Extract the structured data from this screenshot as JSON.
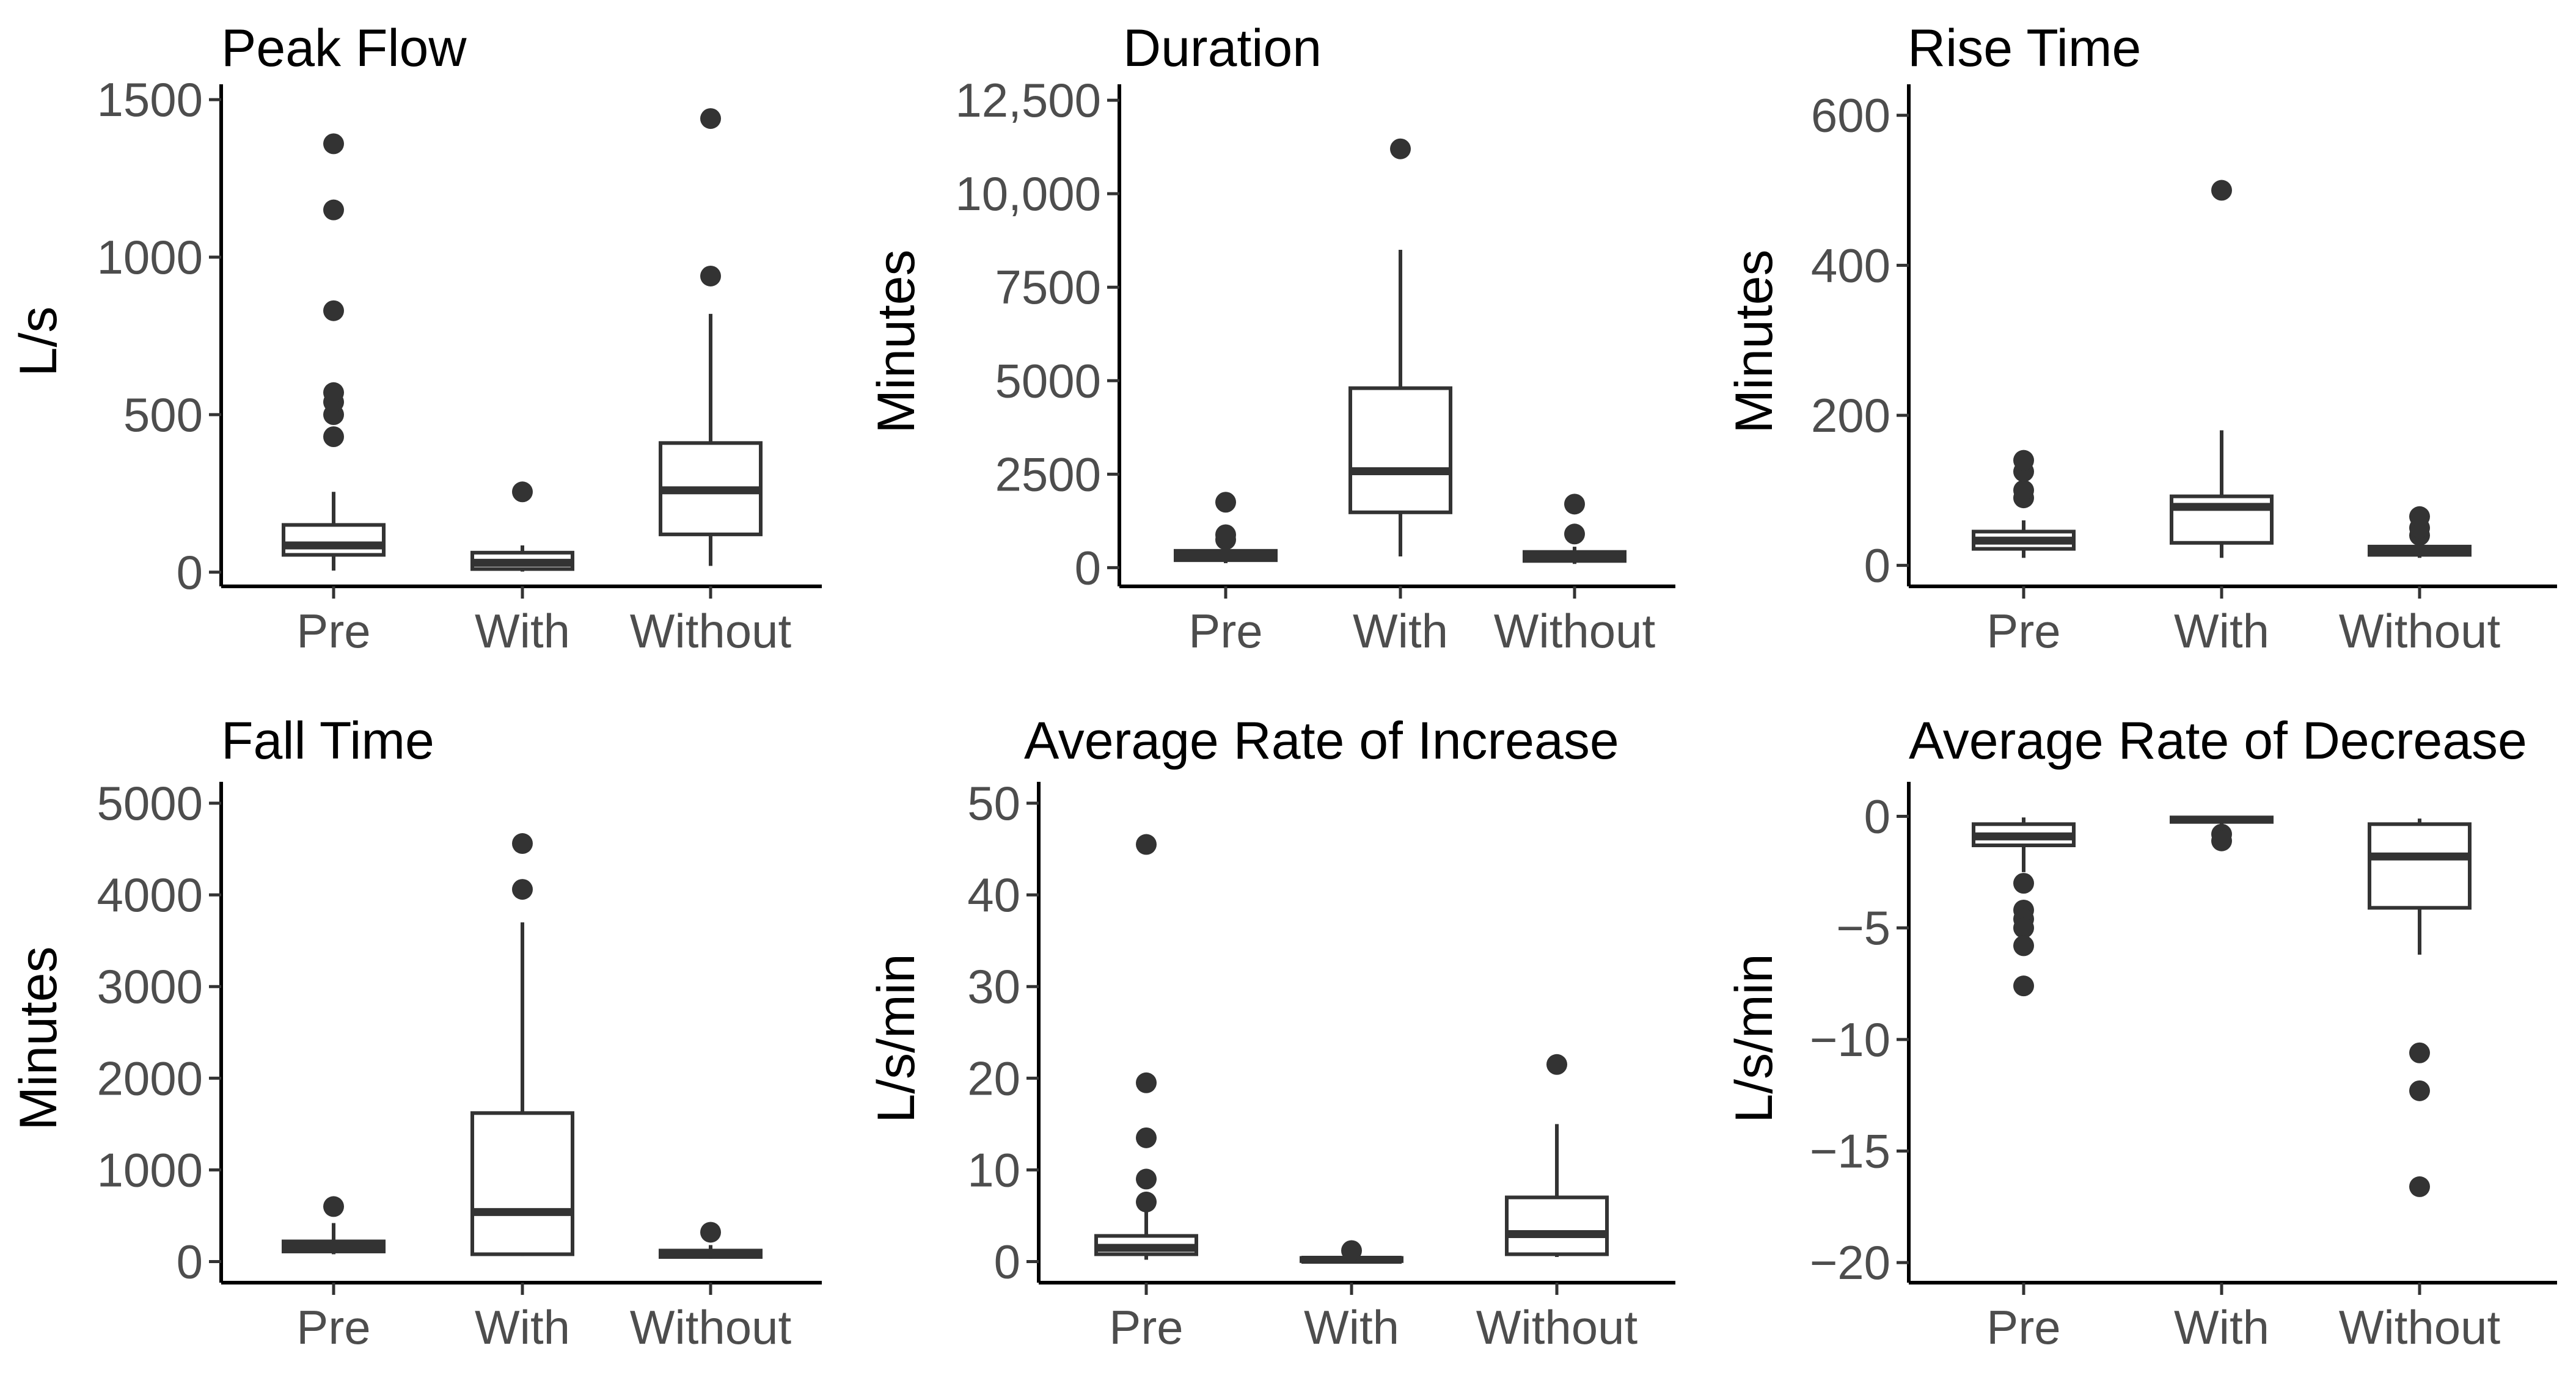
{
  "chart_data": [
    {
      "type": "box",
      "title": "Peak Flow",
      "ylabel": "L/s",
      "categories": [
        "Pre",
        "With",
        "Without"
      ],
      "ylim": [
        -45,
        1510
      ],
      "yticks": [
        0,
        500,
        1000,
        1500
      ],
      "ytick_labels": [
        "0",
        "500",
        "1000",
        "1500"
      ],
      "boxes": [
        {
          "category": "Pre",
          "min": 5,
          "q1": 55,
          "median": 85,
          "q3": 150,
          "max": 255,
          "outliers": [
            430,
            500,
            540,
            570,
            830,
            1150,
            1360
          ]
        },
        {
          "category": "With",
          "min": 2,
          "q1": 10,
          "median": 30,
          "q3": 62,
          "max": 85,
          "outliers": [
            255
          ]
        },
        {
          "category": "Without",
          "min": 20,
          "q1": 120,
          "median": 260,
          "q3": 410,
          "max": 820,
          "outliers": [
            940,
            1440
          ]
        }
      ]
    },
    {
      "type": "box",
      "title": "Duration",
      "ylabel": "Minutes",
      "categories": [
        "Pre",
        "With",
        "Without"
      ],
      "ylim": [
        -500,
        12600
      ],
      "yticks": [
        0,
        2500,
        5000,
        7500,
        10000,
        12500
      ],
      "ytick_labels": [
        "0",
        "2500",
        "5000",
        "7500",
        "10,000",
        "12,500"
      ],
      "boxes": [
        {
          "category": "Pre",
          "min": 120,
          "q1": 200,
          "median": 300,
          "q3": 450,
          "max": 600,
          "outliers": [
            750,
            880,
            1750
          ]
        },
        {
          "category": "With",
          "min": 300,
          "q1": 1480,
          "median": 2580,
          "q3": 4800,
          "max": 8500,
          "outliers": [
            11200
          ]
        },
        {
          "category": "Without",
          "min": 100,
          "q1": 180,
          "median": 300,
          "q3": 420,
          "max": 560,
          "outliers": [
            900,
            1700
          ]
        }
      ]
    },
    {
      "type": "box",
      "title": "Rise Time",
      "ylabel": "Minutes",
      "categories": [
        "Pre",
        "With",
        "Without"
      ],
      "ylim": [
        -28,
        625
      ],
      "yticks": [
        0,
        200,
        400,
        600
      ],
      "ytick_labels": [
        "0",
        "200",
        "400",
        "600"
      ],
      "boxes": [
        {
          "category": "Pre",
          "min": 10,
          "q1": 22,
          "median": 33,
          "q3": 45,
          "max": 60,
          "outliers": [
            90,
            100,
            125,
            140
          ]
        },
        {
          "category": "With",
          "min": 10,
          "q1": 30,
          "median": 78,
          "q3": 92,
          "max": 180,
          "outliers": [
            500
          ]
        },
        {
          "category": "Without",
          "min": 10,
          "q1": 14,
          "median": 20,
          "q3": 25,
          "max": 30,
          "outliers": [
            40,
            50,
            65
          ]
        }
      ]
    },
    {
      "type": "box",
      "title": "Fall Time",
      "ylabel": "Minutes",
      "categories": [
        "Pre",
        "With",
        "Without"
      ],
      "ylim": [
        -230,
        5100
      ],
      "yticks": [
        0,
        1000,
        2000,
        3000,
        4000,
        5000
      ],
      "ytick_labels": [
        "0",
        "1000",
        "2000",
        "3000",
        "4000",
        "5000"
      ],
      "boxes": [
        {
          "category": "Pre",
          "min": 80,
          "q1": 110,
          "median": 160,
          "q3": 220,
          "max": 420,
          "outliers": [
            600
          ]
        },
        {
          "category": "With",
          "min": 60,
          "q1": 80,
          "median": 540,
          "q3": 1620,
          "max": 3700,
          "outliers": [
            4060,
            4560
          ]
        },
        {
          "category": "Without",
          "min": 30,
          "q1": 50,
          "median": 80,
          "q3": 120,
          "max": 180,
          "outliers": [
            320
          ]
        }
      ]
    },
    {
      "type": "box",
      "title": "Average Rate of Increase",
      "ylabel": "L/s/min",
      "categories": [
        "Pre",
        "With",
        "Without"
      ],
      "ylim": [
        -2.3,
        51
      ],
      "yticks": [
        0,
        10,
        20,
        30,
        40,
        50
      ],
      "ytick_labels": [
        "0",
        "10",
        "20",
        "30",
        "40",
        "50"
      ],
      "boxes": [
        {
          "category": "Pre",
          "min": 0.2,
          "q1": 0.8,
          "median": 1.5,
          "q3": 2.8,
          "max": 5.5,
          "outliers": [
            6.5,
            9,
            13.5,
            19.5,
            45.5
          ]
        },
        {
          "category": "With",
          "min": 0.0,
          "q1": 0.05,
          "median": 0.2,
          "q3": 0.4,
          "max": 0.6,
          "outliers": [
            1.2
          ]
        },
        {
          "category": "Without",
          "min": 0.5,
          "q1": 0.8,
          "median": 3.0,
          "q3": 7.0,
          "max": 15.0,
          "outliers": [
            21.5
          ]
        }
      ]
    },
    {
      "type": "box",
      "title": "Average Rate of Decrease",
      "ylabel": "L/s/min",
      "categories": [
        "Pre",
        "With",
        "Without"
      ],
      "ylim": [
        -20.9,
        1.0
      ],
      "yticks": [
        -20,
        -15,
        -10,
        -5,
        0
      ],
      "ytick_labels": [
        "−20",
        "−15",
        "−10",
        "−5",
        "0"
      ],
      "boxes": [
        {
          "category": "Pre",
          "min": -2.5,
          "q1": -1.3,
          "median": -0.9,
          "q3": -0.35,
          "max": -0.05,
          "outliers": [
            -3.0,
            -4.2,
            -4.6,
            -5.0,
            -5.8,
            -7.6
          ]
        },
        {
          "category": "With",
          "min": -0.35,
          "q1": -0.25,
          "median": -0.15,
          "q3": -0.05,
          "max": 0.0,
          "outliers": [
            -0.8,
            -1.1
          ]
        },
        {
          "category": "Without",
          "min": -6.2,
          "q1": -4.1,
          "median": -1.8,
          "q3": -0.35,
          "max": -0.1,
          "outliers": [
            -10.6,
            -12.3,
            -16.6
          ]
        }
      ]
    }
  ]
}
